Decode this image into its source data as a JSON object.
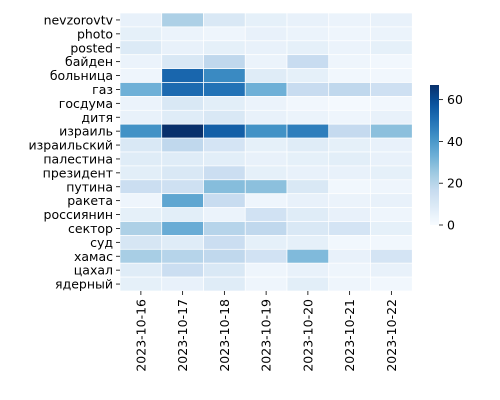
{
  "chart_data": {
    "type": "heatmap",
    "title": "",
    "xlabel": "",
    "ylabel": "",
    "rows": [
      "nevzorovtv",
      "photo",
      "posted",
      "байден",
      "больница",
      "газ",
      "госдума",
      "дитя",
      "израиль",
      "израильский",
      "палестина",
      "президент",
      "путина",
      "ракета",
      "россиянин",
      "сектор",
      "суд",
      "хамас",
      "цахал",
      "ядерный"
    ],
    "columns": [
      "2023-10-16",
      "2023-10-17",
      "2023-10-18",
      "2023-10-19",
      "2023-10-20",
      "2023-10-21",
      "2023-10-22"
    ],
    "values": [
      [
        5,
        22,
        10,
        6,
        5,
        4,
        5
      ],
      [
        6,
        4,
        3,
        5,
        4,
        3,
        4
      ],
      [
        9,
        5,
        6,
        5,
        6,
        4,
        6
      ],
      [
        4,
        10,
        18,
        4,
        16,
        3,
        2
      ],
      [
        3,
        53,
        44,
        8,
        6,
        2,
        2
      ],
      [
        33,
        52,
        50,
        33,
        16,
        18,
        14
      ],
      [
        4,
        10,
        7,
        4,
        2,
        1,
        2
      ],
      [
        5,
        8,
        10,
        5,
        4,
        3,
        5
      ],
      [
        42,
        67,
        55,
        42,
        47,
        17,
        28
      ],
      [
        10,
        18,
        12,
        6,
        8,
        6,
        5
      ],
      [
        8,
        8,
        7,
        5,
        6,
        7,
        5
      ],
      [
        7,
        10,
        15,
        6,
        5,
        5,
        6
      ],
      [
        15,
        14,
        29,
        28,
        10,
        2,
        3
      ],
      [
        3,
        36,
        16,
        3,
        5,
        4,
        5
      ],
      [
        6,
        7,
        4,
        13,
        8,
        5,
        3
      ],
      [
        22,
        34,
        20,
        18,
        10,
        12,
        6
      ],
      [
        11,
        8,
        15,
        6,
        6,
        2,
        2
      ],
      [
        23,
        20,
        18,
        13,
        30,
        5,
        12
      ],
      [
        8,
        15,
        10,
        3,
        5,
        3,
        5
      ],
      [
        6,
        5,
        8,
        3,
        7,
        3,
        2
      ]
    ],
    "vmin": 0,
    "vmax": 67,
    "colormap": "Blues",
    "grid": true,
    "colorbar": {
      "ticks": [
        0,
        20,
        40,
        60
      ],
      "tick_labels": [
        "0",
        "20",
        "40",
        "60"
      ],
      "placement": "right"
    },
    "legend": "none"
  }
}
